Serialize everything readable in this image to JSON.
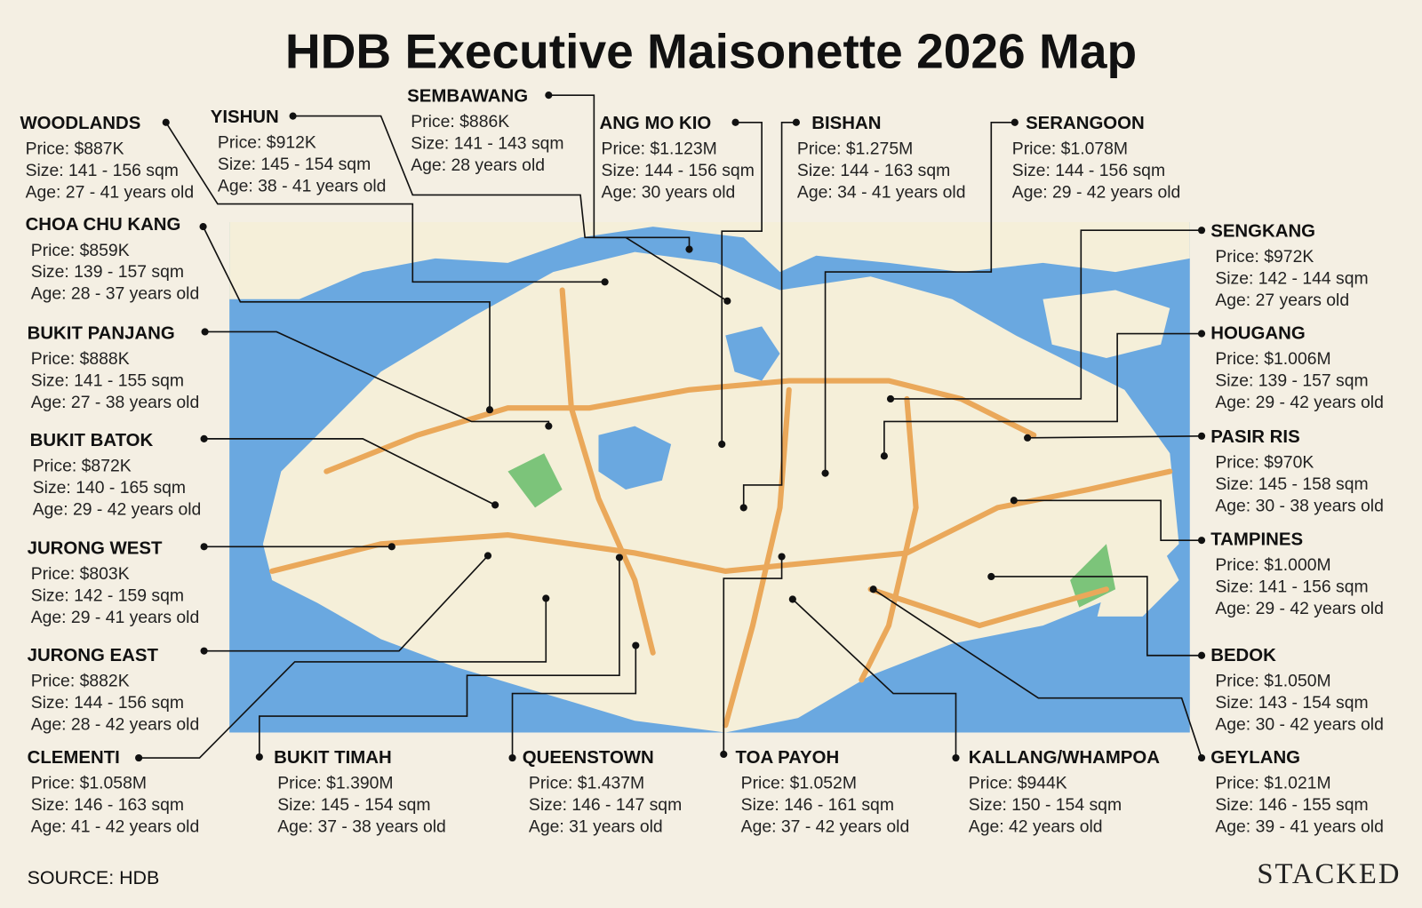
{
  "title": "HDB Executive Maisonette 2026 Map",
  "towns": [
    {
      "name": "WOODLANDS",
      "price": "Price: $887K",
      "size": "Size: 141 - 156 sqm",
      "age": "Age: 27 - 41 years old"
    },
    {
      "name": "YISHUN",
      "price": "Price: $912K",
      "size": "Size: 145 - 154 sqm",
      "age": "Age: 38 - 41 years old"
    },
    {
      "name": "SEMBAWANG",
      "price": "Price: $886K",
      "size": "Size: 141 - 143 sqm",
      "age": "Age: 28 years old"
    },
    {
      "name": "ANG MO KIO",
      "price": "Price: $1.123M",
      "size": "Size: 144 - 156 sqm",
      "age": "Age: 30 years old"
    },
    {
      "name": "BISHAN",
      "price": "Price: $1.275M",
      "size": "Size: 144 - 163 sqm",
      "age": "Age: 34 - 41 years old"
    },
    {
      "name": "SERANGOON",
      "price": "Price: $1.078M",
      "size": "Size: 144 - 156 sqm",
      "age": "Age: 29 - 42 years old"
    },
    {
      "name": "CHOA CHU KANG",
      "price": "Price: $859K",
      "size": "Size: 139 - 157 sqm",
      "age": "Age: 28 - 37 years old"
    },
    {
      "name": "SENGKANG",
      "price": "Price: $972K",
      "size": "Size: 142 - 144 sqm",
      "age": "Age: 27 years old"
    },
    {
      "name": "BUKIT PANJANG",
      "price": "Price: $888K",
      "size": "Size: 141 - 155 sqm",
      "age": "Age: 27 - 38 years old"
    },
    {
      "name": "HOUGANG",
      "price": "Price: $1.006M",
      "size": "Size: 139 - 157 sqm",
      "age": "Age: 29 - 42 years old"
    },
    {
      "name": "BUKIT BATOK",
      "price": "Price: $872K",
      "size": "Size: 140 - 165 sqm",
      "age": "Age: 29 - 42 years old"
    },
    {
      "name": "PASIR RIS",
      "price": "Price: $970K",
      "size": "Size: 145 - 158 sqm",
      "age": "Age: 30 - 38 years old"
    },
    {
      "name": "JURONG WEST",
      "price": "Price: $803K",
      "size": "Size: 142 - 159 sqm",
      "age": "Age: 29 - 41 years old"
    },
    {
      "name": "TAMPINES",
      "price": "Price: $1.000M",
      "size": "Size: 141 - 156 sqm",
      "age": "Age: 29 - 42 years old"
    },
    {
      "name": "JURONG EAST",
      "price": "Price: $882K",
      "size": "Size: 144 - 156 sqm",
      "age": "Age: 28 - 42 years old"
    },
    {
      "name": "BEDOK",
      "price": "Price: $1.050M",
      "size": "Size: 143 - 154 sqm",
      "age": "Age: 30 - 42 years old"
    },
    {
      "name": "CLEMENTI",
      "price": "Price: $1.058M",
      "size": "Size: 146 - 163 sqm",
      "age": "Age: 41 - 42 years old"
    },
    {
      "name": "BUKIT TIMAH",
      "price": "Price: $1.390M",
      "size": "Size: 145 - 154 sqm",
      "age": "Age: 37 - 38 years old"
    },
    {
      "name": "QUEENSTOWN",
      "price": "Price: $1.437M",
      "size": "Size: 146 - 147 sqm",
      "age": "Age: 31 years old"
    },
    {
      "name": "TOA PAYOH",
      "price": "Price: $1.052M",
      "size": "Size: 146 - 161 sqm",
      "age": "Age: 37 - 42 years old"
    },
    {
      "name": "KALLANG/WHAMPOA",
      "price": "Price: $944K",
      "size": "Size: 150 - 154 sqm",
      "age": "Age: 42 years old"
    },
    {
      "name": "GEYLANG",
      "price": "Price: $1.021M",
      "size": "Size: 146 - 155 sqm",
      "age": "Age: 39 - 41 years old"
    }
  ],
  "source": "SOURCE: HDB",
  "brand": "STACKED"
}
